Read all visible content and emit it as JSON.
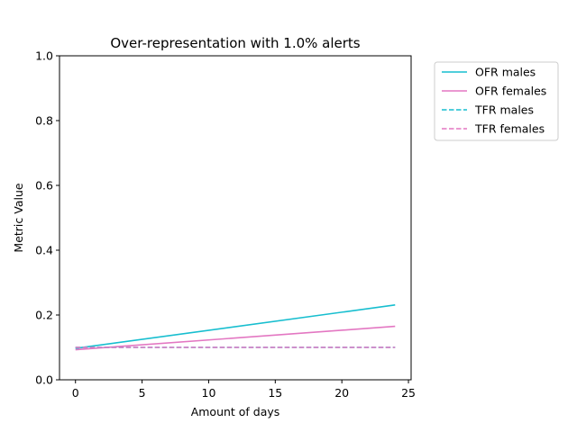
{
  "chart_data": {
    "type": "line",
    "title": "Over-representation with 1.0% alerts",
    "xlabel": "Amount of days",
    "ylabel": "Metric Value",
    "xlim": [
      -1.2,
      25.2
    ],
    "ylim": [
      0.0,
      1.0
    ],
    "xticks": [
      0,
      5,
      10,
      15,
      20,
      25
    ],
    "yticks": [
      0.0,
      0.2,
      0.4,
      0.6,
      0.8,
      1.0
    ],
    "xtick_labels": [
      "0",
      "5",
      "10",
      "15",
      "20",
      "25"
    ],
    "ytick_labels": [
      "0.0",
      "0.2",
      "0.4",
      "0.6",
      "0.8",
      "1.0"
    ],
    "grid": false,
    "legend_position": "outside-top-right",
    "series": [
      {
        "name": "OFR males",
        "color": "#17becf",
        "dash": "solid",
        "x": [
          0,
          24
        ],
        "y": [
          0.097,
          0.231
        ]
      },
      {
        "name": "OFR females",
        "color": "#e377c2",
        "dash": "solid",
        "x": [
          0,
          24
        ],
        "y": [
          0.093,
          0.165
        ]
      },
      {
        "name": "TFR males",
        "color": "#17becf",
        "dash": "dashed",
        "x": [
          0,
          24
        ],
        "y": [
          0.1,
          0.1
        ]
      },
      {
        "name": "TFR females",
        "color": "#e377c2",
        "dash": "dashed",
        "x": [
          0,
          24
        ],
        "y": [
          0.1,
          0.1
        ]
      }
    ]
  }
}
